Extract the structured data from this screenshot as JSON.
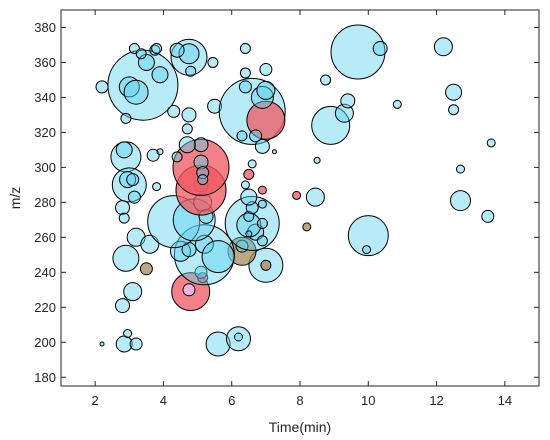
{
  "chart_data": {
    "type": "scatter",
    "xlabel": "Time(min)",
    "ylabel": "m/z",
    "xlim": [
      1,
      15
    ],
    "ylim": [
      175,
      390
    ],
    "grid": false,
    "legend": "none",
    "colors": {
      "blue_fill": "#5fd3ef",
      "blue_fill_light": "#a9e6f5",
      "red_fill": "#f0575f",
      "olive_fill": "#a48a5e",
      "magenta_tint": "#f1b8f0",
      "outline": "#000000"
    },
    "xticks": [
      "2",
      "4",
      "6",
      "8",
      "10",
      "12",
      "14"
    ],
    "xtick_values": [
      2,
      4,
      6,
      8,
      10,
      12,
      14
    ],
    "yticks": [
      "180",
      "200",
      "220",
      "240",
      "260",
      "280",
      "300",
      "320",
      "340",
      "360",
      "380"
    ],
    "ytick_values": [
      180,
      200,
      220,
      240,
      260,
      280,
      300,
      320,
      340,
      360,
      380
    ],
    "points": [
      {
        "x": 2.2,
        "y": 199,
        "r": 2,
        "color": "blue"
      },
      {
        "x": 2.85,
        "y": 199,
        "r": 8,
        "color": "blue"
      },
      {
        "x": 3.2,
        "y": 199,
        "r": 6,
        "color": "blue"
      },
      {
        "x": 2.95,
        "y": 205,
        "r": 4,
        "color": "blue"
      },
      {
        "x": 5.6,
        "y": 199,
        "r": 12,
        "color": "blue"
      },
      {
        "x": 6.2,
        "y": 202,
        "r": 12,
        "color": "blue"
      },
      {
        "x": 6.2,
        "y": 203,
        "r": 4,
        "color": "blue"
      },
      {
        "x": 2.8,
        "y": 221,
        "r": 7,
        "color": "blue"
      },
      {
        "x": 3.1,
        "y": 229,
        "r": 9,
        "color": "blue"
      },
      {
        "x": 4.8,
        "y": 229,
        "r": 19,
        "color": "red"
      },
      {
        "x": 4.75,
        "y": 230,
        "r": 6,
        "color": "magenta"
      },
      {
        "x": 5.15,
        "y": 237,
        "r": 5,
        "color": "red"
      },
      {
        "x": 3.5,
        "y": 242,
        "r": 6,
        "color": "olive"
      },
      {
        "x": 2.9,
        "y": 248,
        "r": 13,
        "color": "blue"
      },
      {
        "x": 7.0,
        "y": 244,
        "r": 17,
        "color": "blue"
      },
      {
        "x": 7.0,
        "y": 244,
        "r": 5,
        "color": "olive"
      },
      {
        "x": 6.3,
        "y": 252,
        "r": 14,
        "color": "olive"
      },
      {
        "x": 6.3,
        "y": 255,
        "r": 6,
        "color": "blue"
      },
      {
        "x": 5.1,
        "y": 240,
        "r": 6,
        "color": "blue"
      },
      {
        "x": 5.2,
        "y": 250,
        "r": 30,
        "color": "blue"
      },
      {
        "x": 4.5,
        "y": 252,
        "r": 10,
        "color": "blue"
      },
      {
        "x": 4.75,
        "y": 253,
        "r": 7,
        "color": "blue"
      },
      {
        "x": 5.2,
        "y": 256,
        "r": 9,
        "color": "blue"
      },
      {
        "x": 5.6,
        "y": 249,
        "r": 16,
        "color": "blue"
      },
      {
        "x": 3.2,
        "y": 260,
        "r": 9,
        "color": "blue"
      },
      {
        "x": 3.6,
        "y": 256,
        "r": 9,
        "color": "blue"
      },
      {
        "x": 4.3,
        "y": 269,
        "r": 26,
        "color": "blue"
      },
      {
        "x": 4.9,
        "y": 270,
        "r": 21,
        "color": "blue"
      },
      {
        "x": 6.6,
        "y": 268,
        "r": 27,
        "color": "blue"
      },
      {
        "x": 6.7,
        "y": 263,
        "r": 8,
        "color": "blue"
      },
      {
        "x": 6.5,
        "y": 267,
        "r": 12,
        "color": "blue"
      },
      {
        "x": 6.5,
        "y": 272,
        "r": 5,
        "color": "blue"
      },
      {
        "x": 6.5,
        "y": 262,
        "r": 3,
        "color": "blue"
      },
      {
        "x": 6.9,
        "y": 258,
        "r": 5,
        "color": "blue"
      },
      {
        "x": 6.9,
        "y": 268,
        "r": 5,
        "color": "blue"
      },
      {
        "x": 6.6,
        "y": 277,
        "r": 6,
        "color": "blue"
      },
      {
        "x": 6.5,
        "y": 283,
        "r": 8,
        "color": "blue"
      },
      {
        "x": 6.9,
        "y": 279,
        "r": 4,
        "color": "blue"
      },
      {
        "x": 6.4,
        "y": 290,
        "r": 4,
        "color": "blue"
      },
      {
        "x": 6.9,
        "y": 287,
        "r": 4,
        "color": "red"
      },
      {
        "x": 6.5,
        "y": 296,
        "r": 5,
        "color": "red"
      },
      {
        "x": 6.6,
        "y": 302,
        "r": 4,
        "color": "blue"
      },
      {
        "x": 5.15,
        "y": 280,
        "r": 9,
        "color": "blue"
      },
      {
        "x": 5.1,
        "y": 290,
        "r": 7,
        "color": "blue"
      },
      {
        "x": 5.25,
        "y": 272,
        "r": 7,
        "color": "blue"
      },
      {
        "x": 5.1,
        "y": 287,
        "r": 25,
        "color": "red"
      },
      {
        "x": 5.1,
        "y": 300,
        "r": 28,
        "color": "red"
      },
      {
        "x": 5.1,
        "y": 303,
        "r": 7,
        "color": "blue"
      },
      {
        "x": 5.15,
        "y": 297,
        "r": 6,
        "color": "blue"
      },
      {
        "x": 5.15,
        "y": 293,
        "r": 5,
        "color": "blue"
      },
      {
        "x": 5.1,
        "y": 313,
        "r": 7,
        "color": "blue"
      },
      {
        "x": 4.7,
        "y": 313,
        "r": 8,
        "color": "blue"
      },
      {
        "x": 4.7,
        "y": 322,
        "r": 5,
        "color": "blue"
      },
      {
        "x": 4.75,
        "y": 330,
        "r": 7,
        "color": "blue"
      },
      {
        "x": 4.3,
        "y": 332,
        "r": 6,
        "color": "blue"
      },
      {
        "x": 4.4,
        "y": 306,
        "r": 5,
        "color": "blue"
      },
      {
        "x": 5.5,
        "y": 335,
        "r": 7,
        "color": "blue"
      },
      {
        "x": 6.6,
        "y": 332,
        "r": 33,
        "color": "blue"
      },
      {
        "x": 7.0,
        "y": 327,
        "r": 19,
        "color": "red"
      },
      {
        "x": 6.9,
        "y": 340,
        "r": 11,
        "color": "blue"
      },
      {
        "x": 7.0,
        "y": 344,
        "r": 9,
        "color": "blue"
      },
      {
        "x": 6.7,
        "y": 318,
        "r": 6,
        "color": "blue"
      },
      {
        "x": 6.9,
        "y": 312,
        "r": 7,
        "color": "blue"
      },
      {
        "x": 7.25,
        "y": 309,
        "r": 2,
        "color": "blue"
      },
      {
        "x": 7.0,
        "y": 356,
        "r": 6,
        "color": "blue"
      },
      {
        "x": 6.4,
        "y": 354,
        "r": 5,
        "color": "blue"
      },
      {
        "x": 6.4,
        "y": 346,
        "r": 6,
        "color": "blue"
      },
      {
        "x": 6.4,
        "y": 368,
        "r": 5,
        "color": "blue"
      },
      {
        "x": 6.3,
        "y": 318,
        "r": 5,
        "color": "blue"
      },
      {
        "x": 3.4,
        "y": 347,
        "r": 35,
        "color": "blue"
      },
      {
        "x": 3.0,
        "y": 346,
        "r": 10,
        "color": "blue"
      },
      {
        "x": 3.2,
        "y": 343,
        "r": 12,
        "color": "blue"
      },
      {
        "x": 3.5,
        "y": 360,
        "r": 8,
        "color": "blue"
      },
      {
        "x": 3.75,
        "y": 367,
        "r": 5,
        "color": "blue"
      },
      {
        "x": 3.9,
        "y": 353,
        "r": 8,
        "color": "blue"
      },
      {
        "x": 3.15,
        "y": 368,
        "r": 5,
        "color": "blue"
      },
      {
        "x": 3.35,
        "y": 365,
        "r": 5,
        "color": "blue"
      },
      {
        "x": 3.8,
        "y": 368,
        "r": 5,
        "color": "blue"
      },
      {
        "x": 2.2,
        "y": 346,
        "r": 6,
        "color": "blue"
      },
      {
        "x": 2.9,
        "y": 328,
        "r": 5,
        "color": "blue"
      },
      {
        "x": 4.75,
        "y": 363,
        "r": 18,
        "color": "blue"
      },
      {
        "x": 4.75,
        "y": 365,
        "r": 10,
        "color": "blue"
      },
      {
        "x": 4.4,
        "y": 367,
        "r": 7,
        "color": "blue"
      },
      {
        "x": 4.8,
        "y": 355,
        "r": 5,
        "color": "blue"
      },
      {
        "x": 5.45,
        "y": 360,
        "r": 5,
        "color": "blue"
      },
      {
        "x": 2.9,
        "y": 306,
        "r": 15,
        "color": "blue"
      },
      {
        "x": 2.85,
        "y": 310,
        "r": 8,
        "color": "blue"
      },
      {
        "x": 3.0,
        "y": 290,
        "r": 17,
        "color": "blue"
      },
      {
        "x": 2.95,
        "y": 293,
        "r": 8,
        "color": "blue"
      },
      {
        "x": 3.1,
        "y": 293,
        "r": 6,
        "color": "blue"
      },
      {
        "x": 3.15,
        "y": 283,
        "r": 6,
        "color": "blue"
      },
      {
        "x": 2.8,
        "y": 277,
        "r": 7,
        "color": "blue"
      },
      {
        "x": 2.85,
        "y": 271,
        "r": 5,
        "color": "blue"
      },
      {
        "x": 3.7,
        "y": 307,
        "r": 6,
        "color": "blue"
      },
      {
        "x": 3.9,
        "y": 309,
        "r": 3,
        "color": "blue"
      },
      {
        "x": 3.8,
        "y": 289,
        "r": 4,
        "color": "blue"
      },
      {
        "x": 7.9,
        "y": 284,
        "r": 4,
        "color": "red"
      },
      {
        "x": 8.2,
        "y": 266,
        "r": 4,
        "color": "olive"
      },
      {
        "x": 8.45,
        "y": 283,
        "r": 9,
        "color": "blue"
      },
      {
        "x": 8.5,
        "y": 304,
        "r": 3,
        "color": "blue"
      },
      {
        "x": 8.75,
        "y": 350,
        "r": 5,
        "color": "blue"
      },
      {
        "x": 8.9,
        "y": 324,
        "r": 19,
        "color": "blue"
      },
      {
        "x": 9.3,
        "y": 331,
        "r": 9,
        "color": "blue"
      },
      {
        "x": 9.4,
        "y": 338,
        "r": 7,
        "color": "blue"
      },
      {
        "x": 9.7,
        "y": 366,
        "r": 27,
        "color": "blue"
      },
      {
        "x": 10.35,
        "y": 368,
        "r": 7,
        "color": "blue"
      },
      {
        "x": 10.0,
        "y": 261,
        "r": 20,
        "color": "blue"
      },
      {
        "x": 9.95,
        "y": 253,
        "r": 4,
        "color": "blue"
      },
      {
        "x": 10.85,
        "y": 336,
        "r": 4,
        "color": "blue"
      },
      {
        "x": 12.2,
        "y": 369,
        "r": 9,
        "color": "blue"
      },
      {
        "x": 12.5,
        "y": 343,
        "r": 8,
        "color": "blue"
      },
      {
        "x": 12.5,
        "y": 333,
        "r": 5,
        "color": "blue"
      },
      {
        "x": 12.7,
        "y": 299,
        "r": 4,
        "color": "blue"
      },
      {
        "x": 12.7,
        "y": 281,
        "r": 10,
        "color": "blue"
      },
      {
        "x": 13.5,
        "y": 272,
        "r": 6,
        "color": "blue"
      },
      {
        "x": 13.6,
        "y": 314,
        "r": 4,
        "color": "blue"
      }
    ]
  }
}
